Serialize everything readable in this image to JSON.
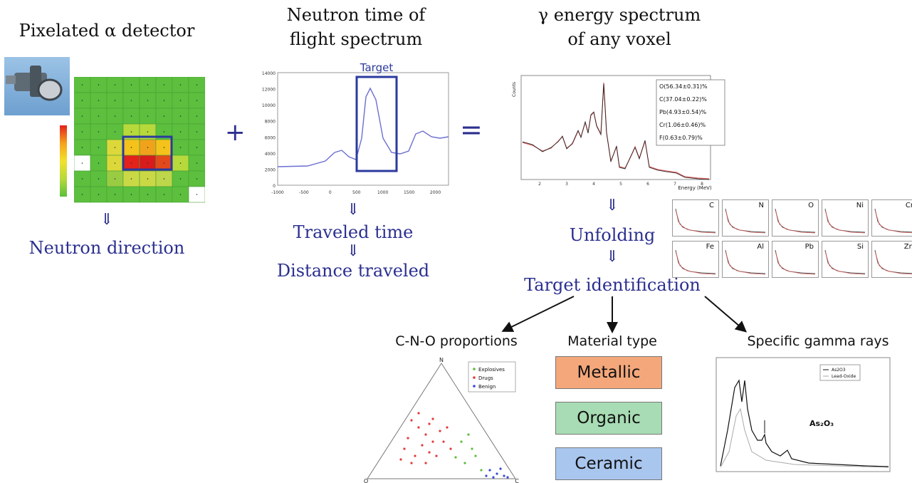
{
  "titles": {
    "pixel_detector": "Pixelated α detector",
    "tof_line1": "Neutron time of",
    "tof_line2": "flight spectrum",
    "gamma_line1": "γ energy spectrum",
    "gamma_line2": "of any voxel"
  },
  "operators": {
    "plus": "+",
    "equals": "="
  },
  "arrows": {
    "down": "⇓"
  },
  "labels": {
    "neutron_direction": "Neutron direction",
    "traveled_time": "Traveled time",
    "distance_traveled": "Distance traveled",
    "unfolding": "Unfolding",
    "target_identification": "Target identification",
    "target": "Target"
  },
  "tof_axis": {
    "y_ticks": [
      "14000",
      "12000",
      "10000",
      "8000",
      "6000",
      "4000",
      "2000",
      "0"
    ],
    "x_ticks": [
      "-1000",
      "-500",
      "0",
      "500",
      "1000",
      "1500",
      "2000"
    ]
  },
  "gamma_spectrum": {
    "y_label": "Counts",
    "x_label": "Energy (MeV)",
    "x_ticks": [
      "2",
      "3",
      "4",
      "5",
      "6",
      "7",
      "8"
    ],
    "legend": [
      "O(56.34±0.31)%",
      "C(37.04±0.22)%",
      "Pb(4.93±0.54)%",
      "Cr(1.06±0.46)%",
      "F(0.63±0.79)%"
    ]
  },
  "element_thumbs": [
    "C",
    "N",
    "O",
    "Ni",
    "Cr",
    "Fe",
    "Al",
    "Pb",
    "Si",
    "Zn"
  ],
  "outputs": {
    "cno": "C-N-O proportions",
    "material": "Material type",
    "specific": "Specific gamma rays"
  },
  "materials": [
    {
      "label": "Metallic",
      "color": "#f4a77a"
    },
    {
      "label": "Organic",
      "color": "#a8dcb4"
    },
    {
      "label": "Ceramic",
      "color": "#a9c6ee"
    }
  ],
  "ternary": {
    "vertex_top": "N",
    "vertex_left": "O",
    "vertex_right": "C",
    "legend": [
      "Explosives",
      "Drugs",
      "Benign"
    ]
  },
  "specific_plot": {
    "compound": "As₂O₃",
    "legend": [
      "As2O3",
      "Lead-Oxide"
    ]
  }
}
